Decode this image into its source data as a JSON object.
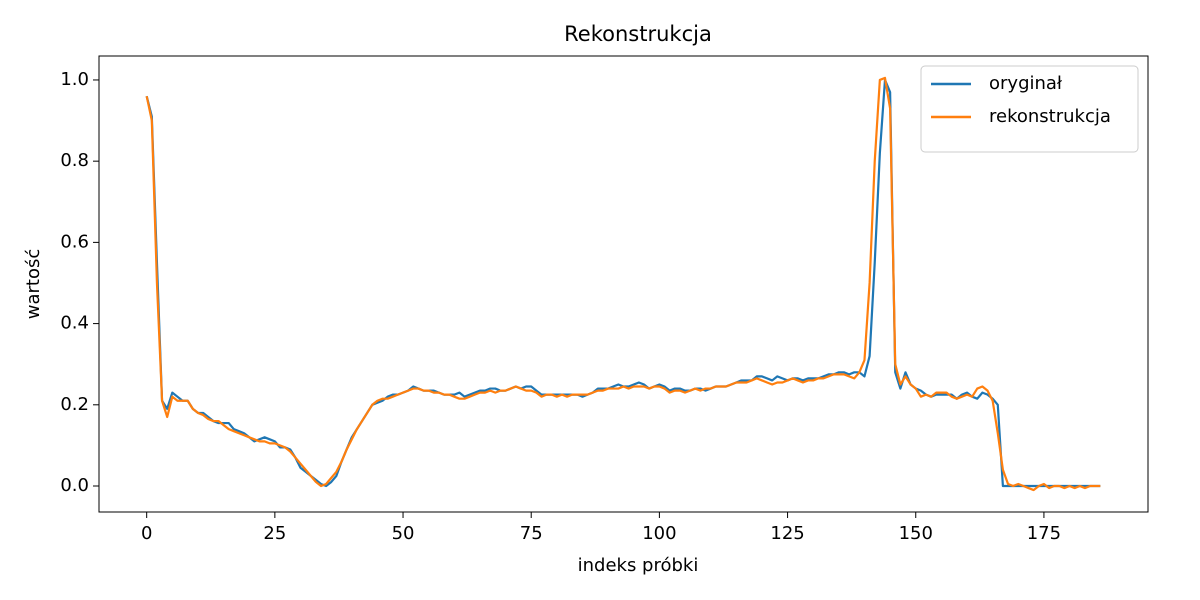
{
  "chart_data": {
    "type": "line",
    "title": "Rekonstrukcja",
    "x_label": "indeks próbki",
    "y_label": "wartość",
    "xlim": [
      -9.3,
      195.3
    ],
    "ylim": [
      -0.064,
      1.059
    ],
    "xticks": [
      0,
      25,
      50,
      75,
      100,
      125,
      150,
      175
    ],
    "yticks": [
      {
        "value": 0,
        "label": "0.0"
      },
      0.2,
      0.4,
      0.6,
      0.8,
      {
        "value": 1,
        "label": "1.0"
      }
    ],
    "grid": false,
    "legend": "upper right",
    "series": [
      {
        "name": "oryginał",
        "color": "#1f77b4",
        "values": [
          0.96,
          0.91,
          0.55,
          0.21,
          0.19,
          0.23,
          0.22,
          0.21,
          0.21,
          0.19,
          0.18,
          0.18,
          0.17,
          0.16,
          0.155,
          0.155,
          0.155,
          0.14,
          0.135,
          0.13,
          0.12,
          0.11,
          0.115,
          0.12,
          0.115,
          0.11,
          0.095,
          0.095,
          0.09,
          0.07,
          0.045,
          0.035,
          0.025,
          0.015,
          0.005,
          0,
          0.01,
          0.025,
          0.06,
          0.09,
          0.12,
          0.14,
          0.16,
          0.18,
          0.2,
          0.205,
          0.21,
          0.22,
          0.225,
          0.225,
          0.23,
          0.235,
          0.245,
          0.24,
          0.235,
          0.235,
          0.235,
          0.23,
          0.225,
          0.225,
          0.225,
          0.23,
          0.22,
          0.225,
          0.23,
          0.235,
          0.235,
          0.24,
          0.24,
          0.235,
          0.235,
          0.24,
          0.245,
          0.24,
          0.245,
          0.245,
          0.235,
          0.225,
          0.225,
          0.225,
          0.225,
          0.225,
          0.225,
          0.225,
          0.225,
          0.22,
          0.225,
          0.23,
          0.24,
          0.24,
          0.24,
          0.245,
          0.25,
          0.245,
          0.245,
          0.25,
          0.255,
          0.25,
          0.24,
          0.245,
          0.25,
          0.245,
          0.235,
          0.24,
          0.24,
          0.235,
          0.235,
          0.24,
          0.24,
          0.235,
          0.24,
          0.245,
          0.245,
          0.245,
          0.25,
          0.255,
          0.26,
          0.26,
          0.26,
          0.27,
          0.27,
          0.265,
          0.26,
          0.27,
          0.265,
          0.26,
          0.265,
          0.265,
          0.26,
          0.265,
          0.265,
          0.265,
          0.27,
          0.275,
          0.275,
          0.28,
          0.28,
          0.275,
          0.28,
          0.28,
          0.27,
          0.32,
          0.55,
          0.82,
          1.0,
          0.97,
          0.28,
          0.24,
          0.28,
          0.25,
          0.24,
          0.235,
          0.225,
          0.22,
          0.225,
          0.225,
          0.225,
          0.225,
          0.215,
          0.225,
          0.23,
          0.22,
          0.215,
          0.23,
          0.225,
          0.215,
          0.2,
          0,
          0,
          0,
          0,
          0,
          0,
          0,
          0,
          0,
          0,
          0,
          0,
          0,
          0,
          0,
          0,
          0,
          0,
          0,
          0
        ]
      },
      {
        "name": "rekonstrukcja",
        "color": "#ff7f0e",
        "values": [
          0.96,
          0.9,
          0.5,
          0.21,
          0.17,
          0.22,
          0.21,
          0.21,
          0.21,
          0.19,
          0.18,
          0.175,
          0.165,
          0.16,
          0.16,
          0.15,
          0.14,
          0.135,
          0.13,
          0.125,
          0.12,
          0.115,
          0.11,
          0.11,
          0.105,
          0.105,
          0.1,
          0.095,
          0.085,
          0.07,
          0.055,
          0.04,
          0.025,
          0.01,
          0,
          0.005,
          0.02,
          0.035,
          0.06,
          0.09,
          0.115,
          0.14,
          0.16,
          0.18,
          0.2,
          0.21,
          0.215,
          0.215,
          0.22,
          0.225,
          0.23,
          0.235,
          0.24,
          0.24,
          0.235,
          0.235,
          0.23,
          0.23,
          0.225,
          0.225,
          0.22,
          0.215,
          0.215,
          0.22,
          0.225,
          0.23,
          0.23,
          0.235,
          0.23,
          0.235,
          0.235,
          0.24,
          0.245,
          0.24,
          0.235,
          0.235,
          0.23,
          0.22,
          0.225,
          0.225,
          0.22,
          0.225,
          0.22,
          0.225,
          0.225,
          0.225,
          0.225,
          0.23,
          0.235,
          0.235,
          0.24,
          0.24,
          0.24,
          0.245,
          0.24,
          0.245,
          0.245,
          0.245,
          0.24,
          0.245,
          0.245,
          0.24,
          0.23,
          0.235,
          0.235,
          0.23,
          0.235,
          0.24,
          0.235,
          0.24,
          0.24,
          0.245,
          0.245,
          0.245,
          0.25,
          0.255,
          0.255,
          0.255,
          0.26,
          0.265,
          0.26,
          0.255,
          0.25,
          0.255,
          0.255,
          0.26,
          0.265,
          0.26,
          0.255,
          0.26,
          0.26,
          0.265,
          0.265,
          0.27,
          0.275,
          0.275,
          0.275,
          0.27,
          0.265,
          0.28,
          0.31,
          0.5,
          0.8,
          1.0,
          1.005,
          0.93,
          0.3,
          0.25,
          0.27,
          0.25,
          0.24,
          0.22,
          0.225,
          0.22,
          0.23,
          0.23,
          0.23,
          0.22,
          0.215,
          0.22,
          0.225,
          0.22,
          0.24,
          0.245,
          0.235,
          0.21,
          0.13,
          0.04,
          0.005,
          0,
          0.005,
          0,
          -0.005,
          -0.01,
          0,
          0.005,
          -0.005,
          0,
          0,
          -0.005,
          0,
          -0.005,
          0,
          -0.005,
          0,
          0,
          0
        ]
      }
    ]
  }
}
